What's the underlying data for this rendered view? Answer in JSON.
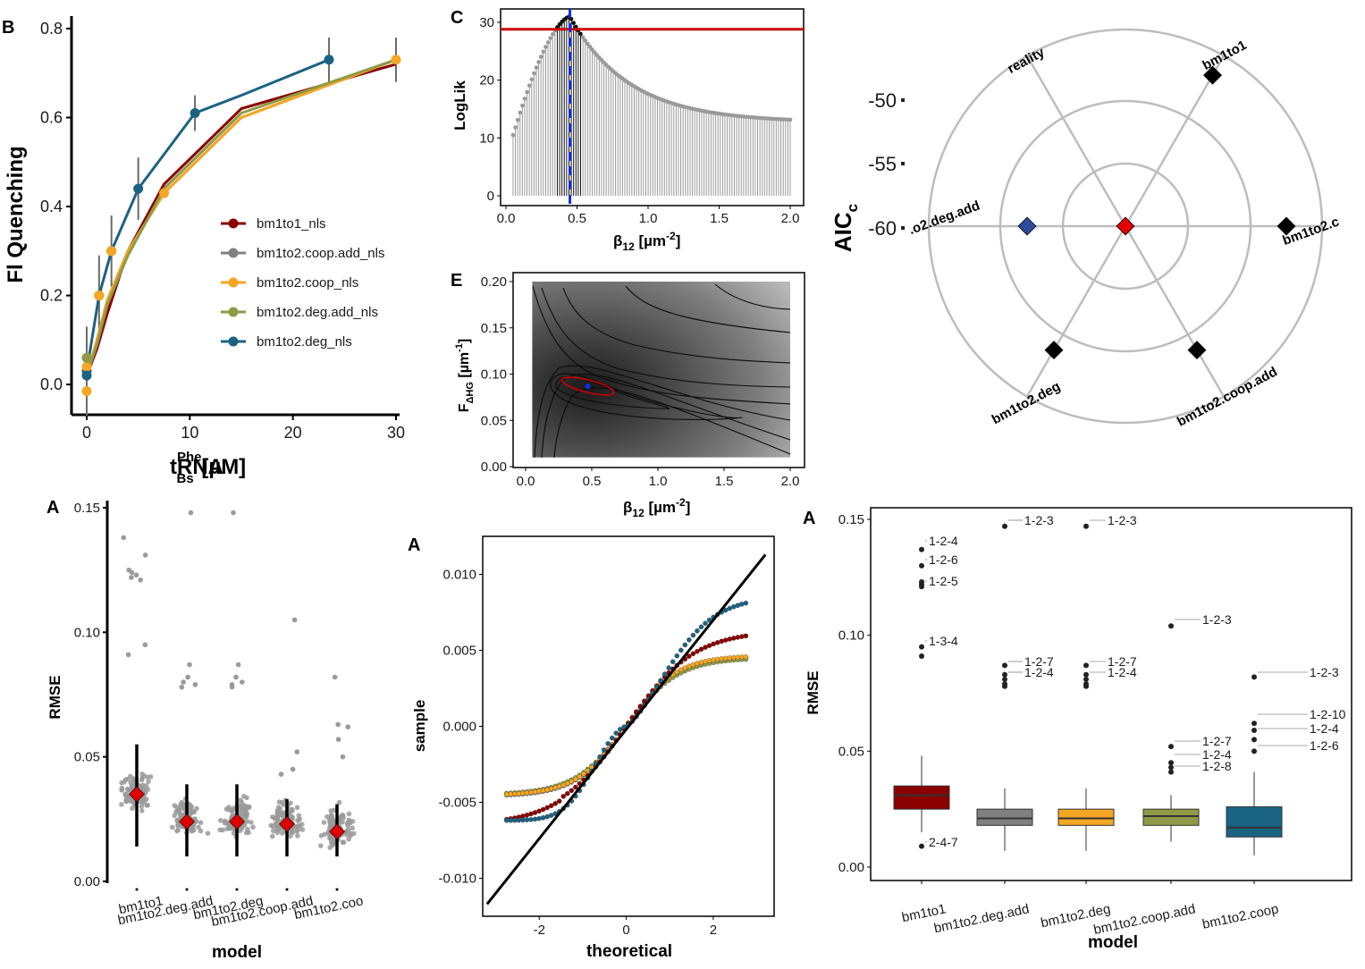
{
  "colors": {
    "bm1to1": "#8B0000",
    "bm1to2_coop_add": "#808080",
    "bm1to2_coop": "#F5A623",
    "bm1to2_deg_add": "#8E9A45",
    "bm1to2_deg": "#1B6383",
    "grid_gray": "#BDBDBD",
    "mle_red": "#CC0000",
    "mle_blue": "#1030E0",
    "polar_blue": "#2E4A9E",
    "polar_red": "#E00000"
  },
  "panels": {
    "B": {
      "label": "B",
      "ylabel": "Fl Quenching",
      "xlabel_main": "tRNA",
      "xlabel_sup": "Phe",
      "xlabel_sub": "Bs",
      "xlabel_unit": " [µM]",
      "xticks": [
        "0",
        "10",
        "20",
        "30"
      ],
      "yticks": [
        "0.0",
        "0.2",
        "0.4",
        "0.6",
        "0.8"
      ],
      "legend": [
        "bm1to1_nls",
        "bm1to2.coop.add_nls",
        "bm1to2.coop_nls",
        "bm1to2.deg.add_nls",
        "bm1to2.deg_nls"
      ]
    },
    "C": {
      "label": "C",
      "ylabel": "LogLik",
      "xlabel_main": "β",
      "xlabel_sub": "12",
      "xlabel_unit": " [µm",
      "xlabel_sup": "-2",
      "xlabel_close": "]",
      "xticks": [
        "0.0",
        "0.5",
        "1.0",
        "1.5",
        "2.0"
      ],
      "yticks": [
        "0",
        "10",
        "20",
        "30"
      ]
    },
    "E": {
      "label": "E",
      "ylabel_main": "F",
      "ylabel_sub": "ΔHG",
      "ylabel_unit": " [µm",
      "ylabel_sup": "-1",
      "ylabel_close": "]",
      "xlabel_main": "β",
      "xlabel_sub": "12",
      "xlabel_unit": " [µm",
      "xlabel_sup": "-2",
      "xlabel_close": "]",
      "xticks": [
        "0.0",
        "0.5",
        "1.0",
        "1.5",
        "2.0"
      ],
      "yticks": [
        "0.00",
        "0.05",
        "0.10",
        "0.15",
        "0.20"
      ]
    },
    "polar": {
      "ylabel": "AIC",
      "ylabel_sub": "c",
      "rticks": [
        "-50",
        "-55",
        "-60"
      ],
      "spokes": [
        "reality",
        "bm1to1",
        "bm1to2.c",
        "bm1to2.coop.add",
        "bm1to2.deg",
        ".o2.deg.add"
      ]
    },
    "A1": {
      "label": "A",
      "ylabel": "RMSE",
      "xlabel": "model",
      "yticks": [
        "0.00",
        "0.05",
        "0.10",
        "0.15"
      ],
      "categories": [
        "bm1to1",
        "bm1to2.deg.add",
        "bm1to2.deg",
        "bm1to2.coop.add",
        "bm1to2.coo"
      ]
    },
    "A2": {
      "label": "A",
      "ylabel": "sample",
      "xlabel": "theoretical",
      "xticks": [
        "-2",
        "0",
        "2"
      ],
      "yticks": [
        "-0.010",
        "-0.005",
        "0.000",
        "0.005",
        "0.010"
      ]
    },
    "A3": {
      "label": "A",
      "ylabel": "RMSE",
      "xlabel": "model",
      "yticks": [
        "0.00",
        "0.05",
        "0.10",
        "0.15"
      ],
      "categories": [
        "bm1to1",
        "bm1to2.deg.add",
        "bm1to2.deg",
        "bm1to2.coop.add",
        "bm1to2.coop"
      ],
      "outlier_labels": [
        [
          "1-2-4",
          "1-2-6",
          "1-2-5",
          "1-3-4",
          "2-4-7"
        ],
        [
          "1-2-3",
          "1-2-7",
          "1-2-4"
        ],
        [
          "1-2-3",
          "1-2-7",
          "1-2-4"
        ],
        [
          "1-2-3",
          "1-2-7",
          "1-2-4",
          "1-2-8"
        ],
        [
          "1-2-3",
          "1-2-10",
          "1-2-4",
          "1-2-6"
        ]
      ]
    }
  },
  "chart_data": [
    {
      "panel": "B",
      "type": "line",
      "xlabel": "tRNA Bs Phe [µM]",
      "ylabel": "Fl Quenching",
      "xlim": [
        0,
        30
      ],
      "ylim": [
        -0.05,
        0.82
      ],
      "legend_placement": "right",
      "series": [
        {
          "name": "bm1to1_nls",
          "x": [
            0,
            1,
            2,
            4,
            7.5,
            15,
            30
          ],
          "y": [
            0.02,
            0.08,
            0.16,
            0.3,
            0.45,
            0.62,
            0.72
          ]
        },
        {
          "name": "bm1to2.coop.add_nls",
          "x": [
            0,
            1,
            2,
            4,
            7.5,
            15,
            30
          ],
          "y": [
            0.02,
            0.1,
            0.19,
            0.3,
            0.43,
            0.6,
            0.73
          ]
        },
        {
          "name": "bm1to2.coop_nls",
          "x": [
            0,
            1,
            2,
            4,
            7.5,
            15,
            30
          ],
          "y": [
            0.02,
            0.1,
            0.19,
            0.3,
            0.43,
            0.6,
            0.73
          ]
        },
        {
          "name": "bm1to2.deg.add_nls",
          "x": [
            0,
            1,
            2,
            4,
            7.5,
            15,
            30
          ],
          "y": [
            0.02,
            0.09,
            0.18,
            0.29,
            0.44,
            0.61,
            0.73
          ]
        },
        {
          "name": "bm1to2.deg_nls",
          "x": [
            0,
            1.2,
            2.4,
            5,
            10.5,
            15,
            23.5
          ],
          "y": [
            0.03,
            0.2,
            0.3,
            0.44,
            0.61,
            0.65,
            0.73
          ]
        }
      ],
      "points": [
        {
          "x": 0,
          "y": 0.03,
          "err": 0.1
        },
        {
          "x": 1.2,
          "y": 0.2,
          "err": 0.09
        },
        {
          "x": 2.4,
          "y": 0.3,
          "err": 0.08
        },
        {
          "x": 5,
          "y": 0.44,
          "err": 0.07
        },
        {
          "x": 10.5,
          "y": 0.61,
          "err": 0.04
        },
        {
          "x": 23.5,
          "y": 0.73,
          "err": 0.05
        },
        {
          "x": 30,
          "y": 0.73,
          "err": 0.05
        }
      ]
    },
    {
      "panel": "C",
      "type": "bar",
      "xlabel": "β12 [µm-2]",
      "ylabel": "LogLik",
      "xlim": [
        -0.05,
        2.05
      ],
      "ylim": [
        -1,
        32
      ],
      "reference_line_y": 28.8,
      "mle_x": 0.45,
      "x_range": [
        0.05,
        2.0
      ],
      "peak_value": 31
    },
    {
      "panel": "E",
      "type": "heatmap",
      "xlabel": "β12 [µm-2]",
      "ylabel": "FΔHG [µm-1]",
      "xlim": [
        -0.05,
        2.1
      ],
      "ylim": [
        0,
        0.21
      ],
      "optimum": {
        "x": 0.47,
        "y": 0.087
      }
    },
    {
      "panel": "polar",
      "type": "scatter",
      "ylabel": "AICc",
      "rticks": [
        -50,
        -55,
        -60
      ],
      "points": [
        {
          "name": "bm1to1",
          "value": -50
        },
        {
          "name": "bm1to2.c",
          "value": -50
        },
        {
          "name": "bm1to2.coop.add",
          "value": -50
        },
        {
          "name": "bm1to2.deg",
          "value": -50
        },
        {
          "name": ".o2.deg.add",
          "value": -55
        },
        {
          "name": "reality",
          "value": -60
        }
      ]
    },
    {
      "panel": "A1",
      "type": "scatter",
      "xlabel": "model",
      "ylabel": "RMSE",
      "ylim": [
        0,
        0.155
      ],
      "categories": [
        "bm1to1",
        "bm1to2.deg.add",
        "bm1to2.deg",
        "bm1to2.coop.add",
        "bm1to2.coo"
      ],
      "means": [
        0.035,
        0.024,
        0.024,
        0.023,
        0.02
      ],
      "sd_ranges": [
        [
          0.014,
          0.055
        ],
        [
          0.01,
          0.039
        ],
        [
          0.01,
          0.039
        ],
        [
          0.01,
          0.033
        ],
        [
          0.01,
          0.031
        ]
      ],
      "outliers": [
        [
          0.138,
          0.131,
          0.125,
          0.123,
          0.122,
          0.121,
          0.124,
          0.095,
          0.091
        ],
        [
          0.148,
          0.087,
          0.082,
          0.08,
          0.079,
          0.078
        ],
        [
          0.148,
          0.087,
          0.082,
          0.08,
          0.079,
          0.078
        ],
        [
          0.105,
          0.052,
          0.045,
          0.043
        ],
        [
          0.082,
          0.063,
          0.062,
          0.057,
          0.05
        ]
      ]
    },
    {
      "panel": "A2",
      "type": "scatter",
      "xlabel": "theoretical",
      "ylabel": "sample",
      "xlim": [
        -3.3,
        3.4
      ],
      "ylim": [
        -0.0125,
        0.0125
      ],
      "reference_line": {
        "x": [
          -3.2,
          3.2
        ],
        "y": [
          -0.0117,
          0.0113
        ]
      },
      "series": [
        {
          "name": "bm1to1",
          "x_range": [
            -2.8,
            2.8
          ],
          "y_range": [
            -0.0064,
            0.0062
          ]
        },
        {
          "name": "bm1to2.deg.add",
          "x_range": [
            -2.8,
            2.8
          ],
          "y_range": [
            -0.0045,
            0.0045
          ]
        },
        {
          "name": "bm1to2.deg",
          "x_range": [
            -2.8,
            2.8
          ],
          "y_range": [
            -0.0045,
            0.0045
          ]
        },
        {
          "name": "bm1to2.coop.add",
          "x_range": [
            -2.8,
            2.8
          ],
          "y_range": [
            -0.0045,
            0.0045
          ]
        },
        {
          "name": "bm1to2.coop",
          "x_range": [
            -2.8,
            2.8
          ],
          "y_range": [
            -0.006,
            0.0085
          ]
        }
      ]
    },
    {
      "panel": "A3",
      "type": "bar",
      "xlabel": "model",
      "ylabel": "RMSE",
      "ylim": [
        -0.003,
        0.152
      ],
      "categories": [
        "bm1to1",
        "bm1to2.deg.add",
        "bm1to2.deg",
        "bm1to2.coop.add",
        "bm1to2.coop"
      ],
      "boxes": [
        {
          "q1": 0.025,
          "median": 0.031,
          "q3": 0.035,
          "lo": 0.015,
          "hi": 0.048
        },
        {
          "q1": 0.018,
          "median": 0.021,
          "q3": 0.025,
          "lo": 0.007,
          "hi": 0.034
        },
        {
          "q1": 0.018,
          "median": 0.021,
          "q3": 0.025,
          "lo": 0.007,
          "hi": 0.034
        },
        {
          "q1": 0.018,
          "median": 0.022,
          "q3": 0.025,
          "lo": 0.011,
          "hi": 0.031
        },
        {
          "q1": 0.013,
          "median": 0.017,
          "q3": 0.026,
          "lo": 0.005,
          "hi": 0.041
        }
      ],
      "outliers": [
        [
          0.137,
          0.13,
          0.123,
          0.121,
          0.122,
          0.095,
          0.091,
          0.009
        ],
        [
          0.147,
          0.087,
          0.083,
          0.081,
          0.079,
          0.078
        ],
        [
          0.147,
          0.087,
          0.083,
          0.081,
          0.079,
          0.078
        ],
        [
          0.104,
          0.052,
          0.045,
          0.043,
          0.041
        ],
        [
          0.082,
          0.062,
          0.059,
          0.055,
          0.05
        ]
      ]
    }
  ]
}
